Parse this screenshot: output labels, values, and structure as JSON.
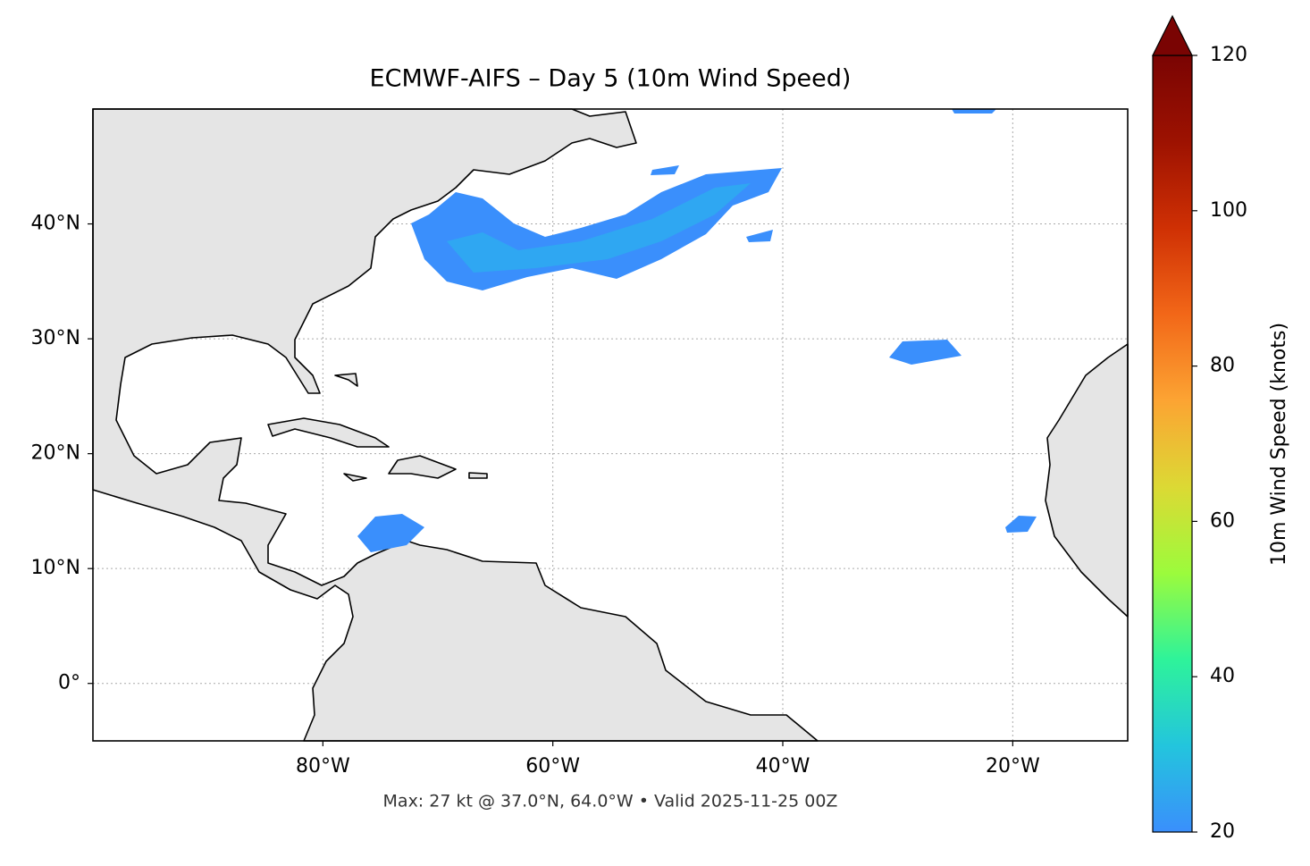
{
  "chart_data": {
    "type": "map",
    "title": "ECMWF-AIFS – Day 5 (10m Wind Speed)",
    "footer": "Max: 27 kt @ 37.0°N, 64.0°W • Valid 2025-11-25 00Z",
    "xlim": [
      -100,
      -10
    ],
    "ylim": [
      -5,
      50
    ],
    "xticks": [
      {
        "value": -80,
        "label": "80°W"
      },
      {
        "value": -60,
        "label": "60°W"
      },
      {
        "value": -40,
        "label": "40°W"
      },
      {
        "value": -20,
        "label": "20°W"
      }
    ],
    "yticks": [
      {
        "value": 0,
        "label": "0°"
      },
      {
        "value": 10,
        "label": "10°N"
      },
      {
        "value": 20,
        "label": "20°N"
      },
      {
        "value": 30,
        "label": "30°N"
      },
      {
        "value": 40,
        "label": "40°N"
      }
    ],
    "grid": true,
    "colorbar": {
      "label": "10m Wind Speed (knots)",
      "lim": [
        20,
        120
      ],
      "ticks": [
        20,
        40,
        60,
        80,
        100,
        120
      ],
      "extend": "max",
      "colors": [
        "#3a8ffc",
        "#23c5dd",
        "#2ef39a",
        "#9cfb3c",
        "#dcd934",
        "#fca433",
        "#f26718",
        "#cf3004",
        "#9d1201",
        "#7a0403"
      ]
    }
  }
}
